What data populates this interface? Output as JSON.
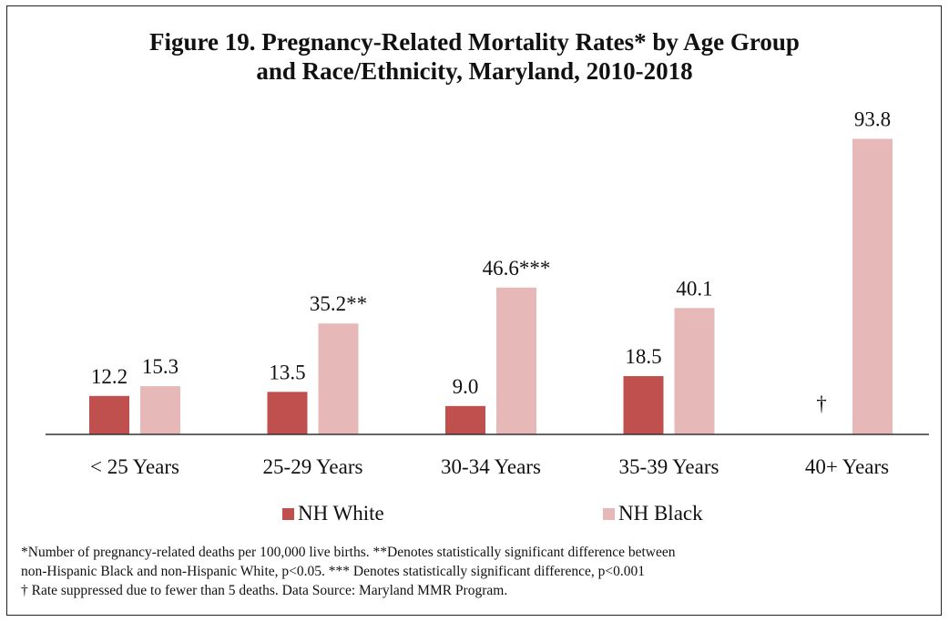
{
  "chart_data": {
    "type": "bar",
    "title_line1": "Figure 19. Pregnancy-Related Mortality Rates* by Age Group",
    "title_line2": "and Race/Ethnicity, Maryland, 2010-2018",
    "categories": [
      "< 25 Years",
      "25-29 Years",
      "30-34 Years",
      "35-39 Years",
      "40+ Years"
    ],
    "series": [
      {
        "name": "NH White",
        "color": "#c0504d",
        "values": [
          12.2,
          13.5,
          9.0,
          18.5,
          null
        ],
        "labels": [
          "12.2",
          "13.5",
          "9.0",
          "18.5",
          "†"
        ]
      },
      {
        "name": "NH Black",
        "color": "#e6b9b8",
        "values": [
          15.3,
          35.2,
          46.6,
          40.1,
          93.8
        ],
        "labels": [
          "15.3",
          "35.2**",
          "46.6***",
          "40.1",
          "93.8"
        ]
      }
    ],
    "ylim": [
      0,
      100
    ],
    "grid": false,
    "legend_position": "bottom"
  },
  "footnotes": [
    "*Number of pregnancy-related deaths per 100,000 live births. **Denotes statistically significant difference between",
    "non-Hispanic Black and non-Hispanic White, p<0.05. *** Denotes statistically significant difference, p<0.001",
    "† Rate suppressed due to fewer than 5 deaths. Data Source: Maryland MMR Program."
  ]
}
